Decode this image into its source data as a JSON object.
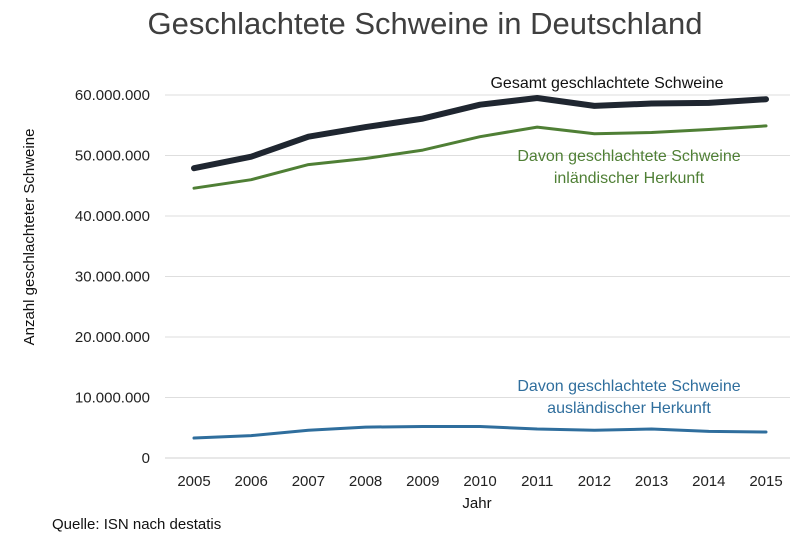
{
  "chart_data": {
    "type": "line",
    "title": "Geschlachtete Schweine in Deutschland",
    "xlabel": "Jahr",
    "ylabel": "Anzahl geschlachteter Schweine",
    "x": [
      2005,
      2006,
      2007,
      2008,
      2009,
      2010,
      2011,
      2012,
      2013,
      2014,
      2015
    ],
    "ylim": [
      0,
      60000000
    ],
    "yticks": [
      0,
      10000000,
      20000000,
      30000000,
      40000000,
      50000000,
      60000000
    ],
    "ytick_labels": [
      "0",
      "10.000.000",
      "20.000.000",
      "30.000.000",
      "40.000.000",
      "50.000.000",
      "60.000.000"
    ],
    "grid": "horizontal",
    "series": [
      {
        "name": "Gesamt geschlachtete Schweine",
        "color": "#1f2630",
        "values": [
          47900000,
          49800000,
          53100000,
          54700000,
          56100000,
          58400000,
          59500000,
          58200000,
          58600000,
          58700000,
          59300000
        ]
      },
      {
        "name": "Davon geschlachtete Schweine inländischer Herkunft",
        "color": "#4f7f35",
        "values": [
          44600000,
          46000000,
          48500000,
          49500000,
          50900000,
          53100000,
          54700000,
          53600000,
          53800000,
          54300000,
          54900000
        ]
      },
      {
        "name": "Davon geschlachtete Schweine ausländischer Herkunft",
        "color": "#2f6e9d",
        "values": [
          3300000,
          3700000,
          4600000,
          5100000,
          5200000,
          5200000,
          4800000,
          4600000,
          4800000,
          4400000,
          4300000
        ]
      }
    ],
    "annotations": [
      {
        "series": 0,
        "lines": [
          "Gesamt geschlachtete Schweine"
        ]
      },
      {
        "series": 1,
        "lines": [
          "Davon geschlachtete Schweine",
          "inländischer Herkunft"
        ]
      },
      {
        "series": 2,
        "lines": [
          "Davon geschlachtete Schweine",
          "ausländischer Herkunft"
        ]
      }
    ],
    "source": "Quelle: ISN nach destatis"
  }
}
